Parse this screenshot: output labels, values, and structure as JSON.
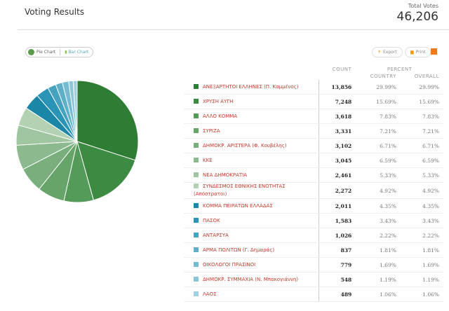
{
  "header": {
    "title": "Voting Results",
    "total_label": "Total Votes",
    "total_value": "46,206"
  },
  "toolbar": {
    "pie_label": "Pie Chart",
    "bar_label": "Bar Chart",
    "export_label": "Export",
    "print_label": "Print",
    "rss_icon": "rss-icon"
  },
  "table": {
    "headers": {
      "count": "COUNT",
      "percent": "PERCENT",
      "country": "COUNTRY",
      "overall": "OVERALL"
    },
    "rows": [
      {
        "name": "ΑΝΕΞΑΡΤΗΤΟΙ ΕΛΛΗΝΕΣ (Π. Καμμένος)",
        "count": "13,856",
        "country": "29.99%",
        "overall": "29.99%",
        "color": "#2f7d34"
      },
      {
        "name": "ΧΡΥΣΗ ΑΥΓΗ",
        "count": "7,248",
        "country": "15.69%",
        "overall": "15.69%",
        "color": "#3d8a42"
      },
      {
        "name": "ΑΛΛΟ ΚΟΜΜΑ",
        "count": "3,618",
        "country": "7.83%",
        "overall": "7.83%",
        "color": "#549a59"
      },
      {
        "name": "ΣΥΡΙΖΑ",
        "count": "3,331",
        "country": "7.21%",
        "overall": "7.21%",
        "color": "#66a46a"
      },
      {
        "name": "ΔΗΜΟΚΡ. ΑΡΙΣΤΕΡΑ (Φ. Κουβέλης)",
        "count": "3,102",
        "country": "6.71%",
        "overall": "6.71%",
        "color": "#7aaf7d"
      },
      {
        "name": "ΚΚΕ",
        "count": "3,045",
        "country": "6.59%",
        "overall": "6.59%",
        "color": "#8cba8e"
      },
      {
        "name": "ΝΕΑ ΔΗΜΟΚΡΑΤΙΑ",
        "count": "2,461",
        "country": "5.33%",
        "overall": "5.33%",
        "color": "#9fc6a0"
      },
      {
        "name": "ΣΥΝΔΕΣΜΟΣ ΕΘΝΙΚΗΣ ΕΝΟΤΗΤΑΣ (Απόστρατοι)",
        "count": "2,272",
        "country": "4.92%",
        "overall": "4.92%",
        "color": "#b3d1b3"
      },
      {
        "name": "ΚΟΜΜΑ ΠΕΙΡΑΤΩΝ ΕΛΛΑΔΑΣ",
        "count": "2,011",
        "country": "4.35%",
        "overall": "4.35%",
        "color": "#1a86a8"
      },
      {
        "name": "ΠΑΣΟΚ",
        "count": "1,583",
        "country": "3.43%",
        "overall": "3.43%",
        "color": "#2a94b6"
      },
      {
        "name": "ΑΝΤΑΡΣΥΑ",
        "count": "1,026",
        "country": "2.22%",
        "overall": "2.22%",
        "color": "#46a3c0"
      },
      {
        "name": "ΑΡΜΑ ΠΟΛΙΤΩΝ (Γ. Δημαράς)",
        "count": "837",
        "country": "1.81%",
        "overall": "1.81%",
        "color": "#5eb0c9"
      },
      {
        "name": "ΟΙΚΟΛΟΓΟΙ ΠΡΑΣΙΝΟΙ",
        "count": "779",
        "country": "1.69%",
        "overall": "1.69%",
        "color": "#75bbd1"
      },
      {
        "name": "ΔΗΜΟΚΡ. ΣΥΜΜΑΧΙΑ (Ν. Μπακογιάννη)",
        "count": "548",
        "country": "1.19%",
        "overall": "1.19%",
        "color": "#8bc5d8"
      },
      {
        "name": "ΛΑΟΣ",
        "count": "489",
        "country": "1.06%",
        "overall": "1.06%",
        "color": "#a0d0e0"
      }
    ]
  },
  "chart_data": {
    "type": "pie",
    "values": [
      13856,
      7248,
      3618,
      3331,
      3102,
      3045,
      2461,
      2272,
      2011,
      1583,
      1026,
      837,
      779,
      548,
      489
    ]
  }
}
